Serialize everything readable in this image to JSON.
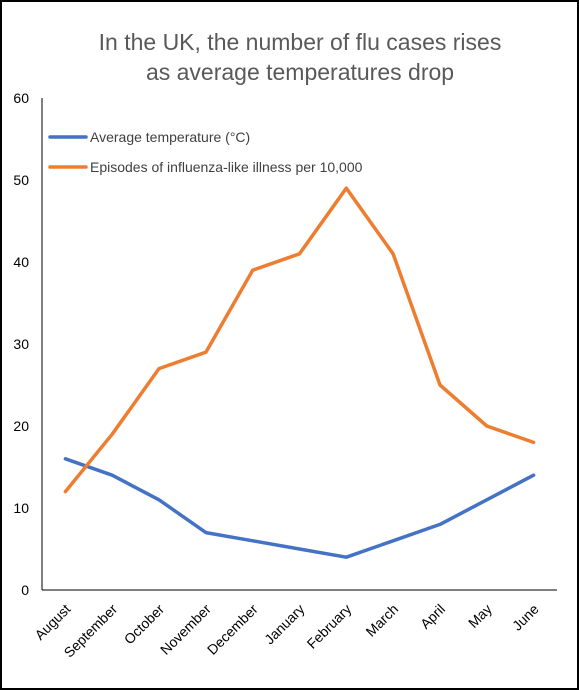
{
  "chart_data": {
    "type": "line",
    "title": "In the UK, the number of flu cases rises",
    "subtitle": "as average temperatures drop",
    "xlabel": "",
    "ylabel": "",
    "categories": [
      "August",
      "September",
      "October",
      "November",
      "December",
      "January",
      "February",
      "March",
      "April",
      "May",
      "June"
    ],
    "ylim": [
      0,
      60
    ],
    "yticks": [
      "0",
      "10",
      "20",
      "30",
      "40",
      "50",
      "60"
    ],
    "grid": false,
    "legend_position": "top-left",
    "series": [
      {
        "name": "Average temperature (°C)",
        "color": "#4472C4",
        "values": [
          16,
          14,
          11,
          7,
          6,
          5,
          4,
          6,
          8,
          11,
          14
        ]
      },
      {
        "name": "Episodes of influenza-like illness per 10,000",
        "color": "#ED7D31",
        "values": [
          12,
          19,
          27,
          29,
          39,
          41,
          49,
          41,
          25,
          20,
          18
        ]
      }
    ]
  }
}
